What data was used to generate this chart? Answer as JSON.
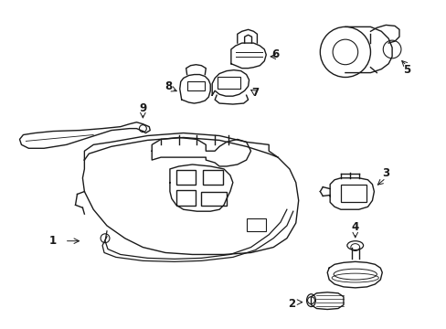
{
  "bg_color": "#ffffff",
  "line_color": "#1a1a1a",
  "lw": 1.0,
  "fig_w": 4.89,
  "fig_h": 3.6,
  "dpi": 100
}
